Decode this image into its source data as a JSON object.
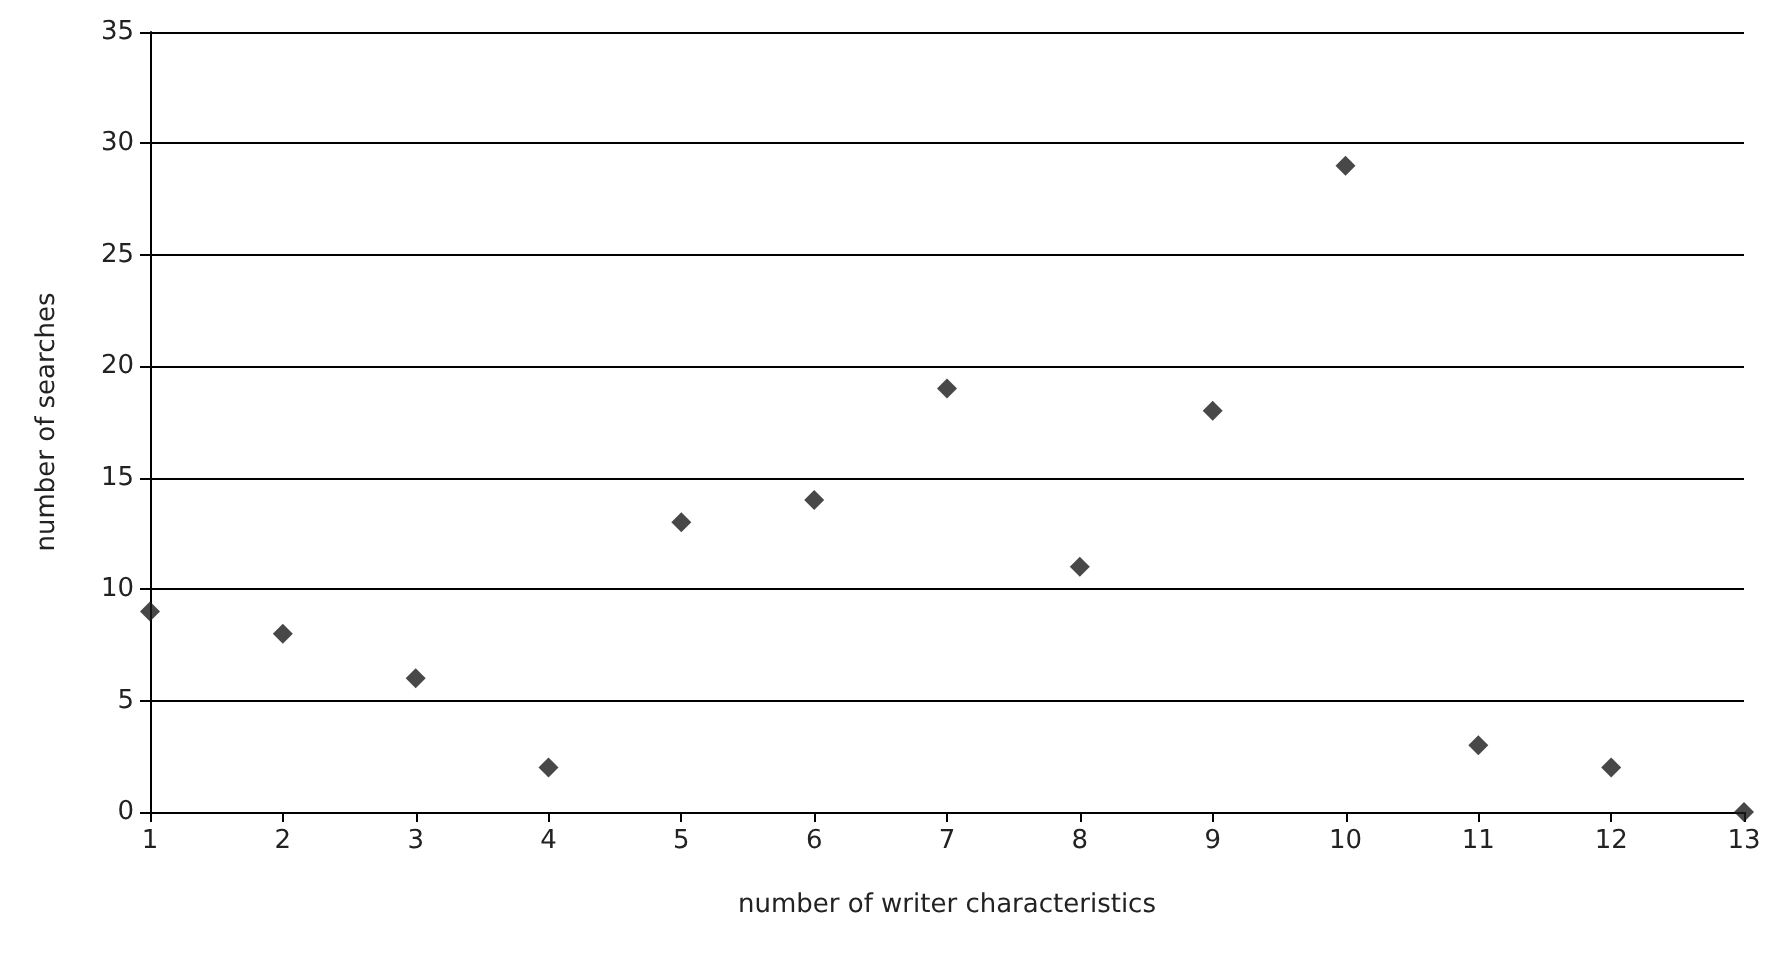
{
  "chart_data": {
    "type": "scatter",
    "xlabel": "number of writer characteristics",
    "ylabel": "number of searches",
    "x": [
      1,
      2,
      3,
      4,
      5,
      6,
      7,
      8,
      9,
      10,
      11,
      12,
      13
    ],
    "values": [
      9,
      8,
      6,
      2,
      13,
      14,
      19,
      11,
      18,
      29,
      3,
      2,
      0
    ],
    "color": "#1a1a1a",
    "marker": "diamond",
    "xlim": [
      1,
      13
    ],
    "xticks": [
      1,
      2,
      3,
      4,
      5,
      6,
      7,
      8,
      9,
      10,
      11,
      12,
      13
    ],
    "ylim": [
      0,
      35
    ],
    "yticks": [
      0,
      5,
      10,
      15,
      20,
      25,
      30,
      35
    ],
    "grid": "y"
  }
}
